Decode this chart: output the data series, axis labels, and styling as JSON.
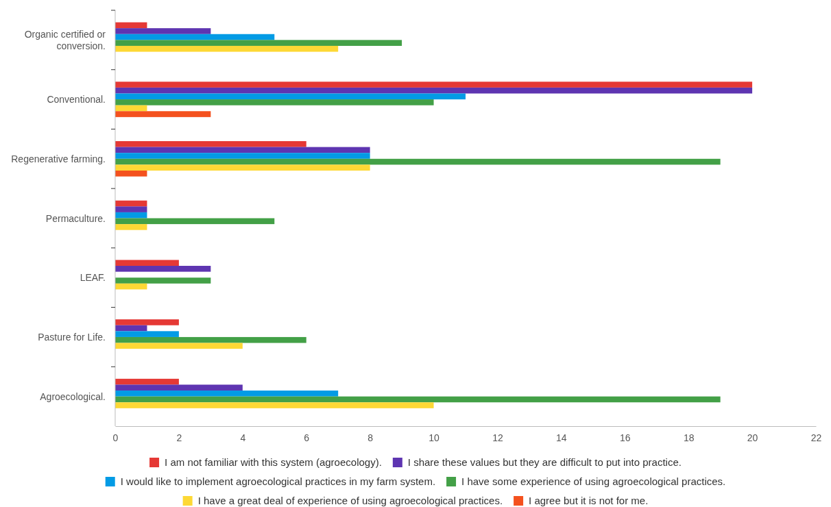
{
  "chart_data": {
    "type": "bar",
    "orientation": "horizontal",
    "categories": [
      "Organic certified or conversion.",
      "Conventional.",
      "Regenerative farming.",
      "Permaculture.",
      "LEAF.",
      "Pasture for Life.",
      "Agroecological."
    ],
    "series": [
      {
        "name": "I am not familiar with this system (agroecology).",
        "color": "#e53935",
        "values": [
          1,
          20,
          6,
          1,
          2,
          2,
          2
        ]
      },
      {
        "name": "I share these values but they are difficult to put into practice.",
        "color": "#5e35b1",
        "values": [
          3,
          20,
          8,
          1,
          3,
          1,
          4
        ]
      },
      {
        "name": "I would like to implement agroecological practices in my farm system.",
        "color": "#039be5",
        "values": [
          5,
          11,
          8,
          1,
          null,
          2,
          7
        ]
      },
      {
        "name": "I have some experience of using agroecological practices.",
        "color": "#43a047",
        "values": [
          9,
          10,
          19,
          5,
          3,
          6,
          19
        ]
      },
      {
        "name": "I have a great deal of experience of using agroecological practices.",
        "color": "#fdd835",
        "values": [
          7,
          1,
          8,
          1,
          1,
          4,
          10
        ]
      },
      {
        "name": "I agree but it is not for me.",
        "color": "#f4511e",
        "values": [
          null,
          3,
          1,
          null,
          null,
          null,
          null
        ]
      }
    ],
    "xlim": [
      0,
      22
    ],
    "xticks": [
      0,
      2,
      4,
      6,
      8,
      10,
      12,
      14,
      16,
      18,
      20,
      22
    ],
    "grid": false,
    "legend": "bottom"
  }
}
